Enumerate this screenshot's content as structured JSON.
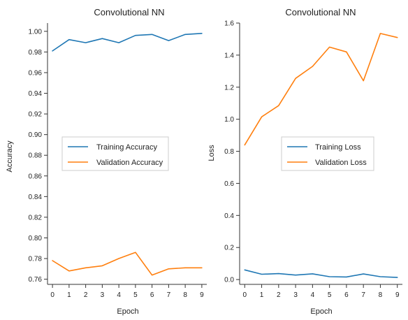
{
  "chart_data": [
    {
      "type": "line",
      "title": "Convolutional NN",
      "xlabel": "Epoch",
      "ylabel": "Accuracy",
      "x": [
        0,
        1,
        2,
        3,
        4,
        5,
        6,
        7,
        8,
        9
      ],
      "xticks": [
        "0",
        "1",
        "2",
        "3",
        "4",
        "5",
        "6",
        "7",
        "8",
        "9"
      ],
      "xlim": [
        -0.3,
        9.3
      ],
      "ylim": [
        0.755,
        1.008
      ],
      "yticks": [
        "0.76",
        "0.78",
        "0.80",
        "0.82",
        "0.84",
        "0.86",
        "0.88",
        "0.90",
        "0.92",
        "0.94",
        "0.96",
        "0.98",
        "1.00"
      ],
      "ytick_values": [
        0.76,
        0.78,
        0.8,
        0.82,
        0.84,
        0.86,
        0.88,
        0.9,
        0.92,
        0.94,
        0.96,
        0.98,
        1.0
      ],
      "grid": false,
      "legend_position": "center",
      "series": [
        {
          "name": "Training Accuracy",
          "color": "#1f77b4",
          "values": [
            0.981,
            0.992,
            0.989,
            0.993,
            0.989,
            0.996,
            0.997,
            0.991,
            0.997,
            0.998
          ]
        },
        {
          "name": "Validation Accuracy",
          "color": "#ff7f0e",
          "values": [
            0.778,
            0.768,
            0.771,
            0.773,
            0.78,
            0.786,
            0.764,
            0.77,
            0.771,
            0.771
          ]
        }
      ]
    },
    {
      "type": "line",
      "title": "Convolutional NN",
      "xlabel": "Epoch",
      "ylabel": "Loss",
      "x": [
        0,
        1,
        2,
        3,
        4,
        5,
        6,
        7,
        8,
        9
      ],
      "xticks": [
        "0",
        "1",
        "2",
        "3",
        "4",
        "5",
        "6",
        "7",
        "8",
        "9"
      ],
      "xlim": [
        -0.3,
        9.3
      ],
      "ylim": [
        -0.03,
        1.6
      ],
      "yticks": [
        "0.0",
        "0.2",
        "0.4",
        "0.6",
        "0.8",
        "1.0",
        "1.2",
        "1.4",
        "1.6"
      ],
      "ytick_values": [
        0.0,
        0.2,
        0.4,
        0.6,
        0.8,
        1.0,
        1.2,
        1.4,
        1.6
      ],
      "grid": false,
      "legend_position": "center-right",
      "series": [
        {
          "name": "Training Loss",
          "color": "#1f77b4",
          "values": [
            0.06,
            0.033,
            0.037,
            0.028,
            0.036,
            0.018,
            0.016,
            0.035,
            0.018,
            0.013
          ]
        },
        {
          "name": "Validation Loss",
          "color": "#ff7f0e",
          "values": [
            0.84,
            1.015,
            1.085,
            1.255,
            1.33,
            1.45,
            1.42,
            1.24,
            1.535,
            1.51
          ]
        }
      ]
    }
  ]
}
